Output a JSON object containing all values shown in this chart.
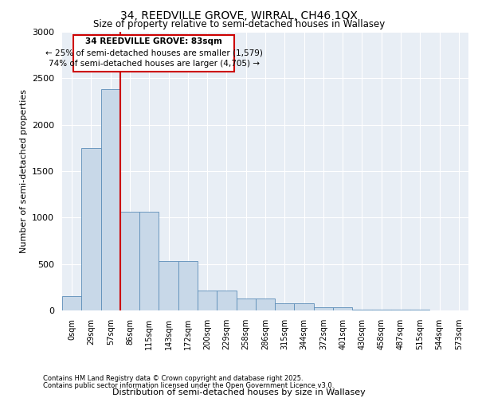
{
  "title_line1": "34, REEDVILLE GROVE, WIRRAL, CH46 1QX",
  "title_line2": "Size of property relative to semi-detached houses in Wallasey",
  "xlabel": "Distribution of semi-detached houses by size in Wallasey",
  "ylabel": "Number of semi-detached properties",
  "footnote1": "Contains HM Land Registry data © Crown copyright and database right 2025.",
  "footnote2": "Contains public sector information licensed under the Open Government Licence v3.0.",
  "annotation_title": "34 REEDVILLE GROVE: 83sqm",
  "annotation_line2": "← 25% of semi-detached houses are smaller (1,579)",
  "annotation_line3": "74% of semi-detached houses are larger (4,705) →",
  "bar_color": "#c8d8e8",
  "bar_edge_color": "#5b8db8",
  "vline_color": "#cc0000",
  "background_color": "#ffffff",
  "plot_bg_color": "#e8eef5",
  "grid_color": "#ffffff",
  "categories": [
    "0sqm",
    "29sqm",
    "57sqm",
    "86sqm",
    "115sqm",
    "143sqm",
    "172sqm",
    "200sqm",
    "229sqm",
    "258sqm",
    "286sqm",
    "315sqm",
    "344sqm",
    "372sqm",
    "401sqm",
    "430sqm",
    "458sqm",
    "487sqm",
    "515sqm",
    "544sqm",
    "573sqm"
  ],
  "values": [
    155,
    1750,
    2380,
    1060,
    1060,
    535,
    535,
    215,
    215,
    130,
    130,
    75,
    75,
    35,
    35,
    10,
    10,
    5,
    5,
    2,
    2
  ],
  "vline_x": 2.5,
  "ylim": [
    0,
    3000
  ],
  "yticks": [
    0,
    500,
    1000,
    1500,
    2000,
    2500,
    3000
  ]
}
